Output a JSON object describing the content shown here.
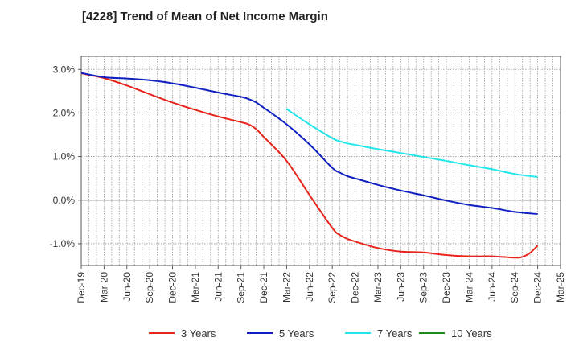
{
  "chart_data": {
    "type": "line",
    "title": "[4228]  Trend of Mean of Net Income Margin",
    "xlabel": "",
    "ylabel": "",
    "x_ticks": [
      "Dec-19",
      "Mar-20",
      "Jun-20",
      "Sep-20",
      "Dec-20",
      "Mar-21",
      "Jun-21",
      "Sep-21",
      "Dec-21",
      "Mar-22",
      "Jun-22",
      "Sep-22",
      "Dec-22",
      "Mar-23",
      "Jun-23",
      "Sep-23",
      "Dec-23",
      "Mar-24",
      "Jun-24",
      "Sep-24",
      "Dec-24",
      "Mar-25"
    ],
    "y_ticks": [
      {
        "value": 3.0,
        "label": "3.0%"
      },
      {
        "value": 2.0,
        "label": "2.0%"
      },
      {
        "value": 1.0,
        "label": "1.0%"
      },
      {
        "value": 0.0,
        "label": "0.0%"
      },
      {
        "value": -1.0,
        "label": "-1.0%"
      }
    ],
    "ylim": [
      -1.5,
      3.3
    ],
    "grid": true,
    "legend_position": "bottom",
    "series": [
      {
        "name": "3 Years",
        "color": "#e8251d",
        "x": [
          "Dec-19",
          "Mar-20",
          "Jun-20",
          "Sep-20",
          "Dec-20",
          "Mar-21",
          "Jun-21",
          "Sep-21",
          "Oct-21",
          "Nov-21",
          "Dec-21",
          "Mar-22",
          "Jun-22",
          "Sep-22",
          "Oct-22",
          "Nov-22",
          "Dec-22",
          "Mar-23",
          "Jun-23",
          "Sep-23",
          "Dec-23",
          "Mar-24",
          "Jun-24",
          "Sep-24",
          "Oct-24",
          "Nov-24",
          "Dec-24"
        ],
        "values": [
          2.91,
          2.8,
          2.63,
          2.43,
          2.24,
          2.07,
          1.92,
          1.79,
          1.74,
          1.63,
          1.45,
          0.9,
          0.12,
          -0.64,
          -0.8,
          -0.89,
          -0.95,
          -1.1,
          -1.18,
          -1.2,
          -1.26,
          -1.29,
          -1.29,
          -1.32,
          -1.3,
          -1.21,
          -1.04
        ]
      },
      {
        "name": "5 Years",
        "color": "#1020c0",
        "x": [
          "Dec-19",
          "Mar-20",
          "Jun-20",
          "Sep-20",
          "Dec-20",
          "Mar-21",
          "Jun-21",
          "Sep-21",
          "Oct-21",
          "Nov-21",
          "Dec-21",
          "Mar-22",
          "Jun-22",
          "Sep-22",
          "Oct-22",
          "Nov-22",
          "Dec-22",
          "Mar-23",
          "Jun-23",
          "Sep-23",
          "Dec-23",
          "Mar-24",
          "Jun-24",
          "Sep-24",
          "Dec-24"
        ],
        "values": [
          2.92,
          2.82,
          2.79,
          2.75,
          2.68,
          2.58,
          2.47,
          2.37,
          2.32,
          2.24,
          2.12,
          1.74,
          1.28,
          0.74,
          0.63,
          0.55,
          0.5,
          0.35,
          0.22,
          0.11,
          -0.01,
          -0.11,
          -0.18,
          -0.27,
          -0.32
        ]
      },
      {
        "name": "7 Years",
        "color": "#22e6ea",
        "x": [
          "Mar-22",
          "Jun-22",
          "Sep-22",
          "Oct-22",
          "Nov-22",
          "Dec-22",
          "Mar-23",
          "Jun-23",
          "Sep-23",
          "Dec-23",
          "Mar-24",
          "Jun-24",
          "Sep-24",
          "Dec-24"
        ],
        "values": [
          2.09,
          1.74,
          1.42,
          1.35,
          1.3,
          1.27,
          1.17,
          1.08,
          0.99,
          0.9,
          0.8,
          0.71,
          0.6,
          0.53
        ]
      },
      {
        "name": "10 Years",
        "color": "#1a8a1a",
        "x": [],
        "values": []
      }
    ]
  }
}
